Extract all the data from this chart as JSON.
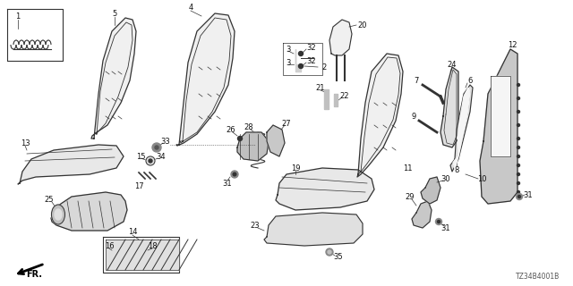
{
  "background_color": "#ffffff",
  "diagram_code": "TZ34B4001B",
  "figsize": [
    6.4,
    3.2
  ],
  "dpi": 100,
  "line_color": "#333333",
  "label_fontsize": 6.0,
  "label_color": "#111111"
}
